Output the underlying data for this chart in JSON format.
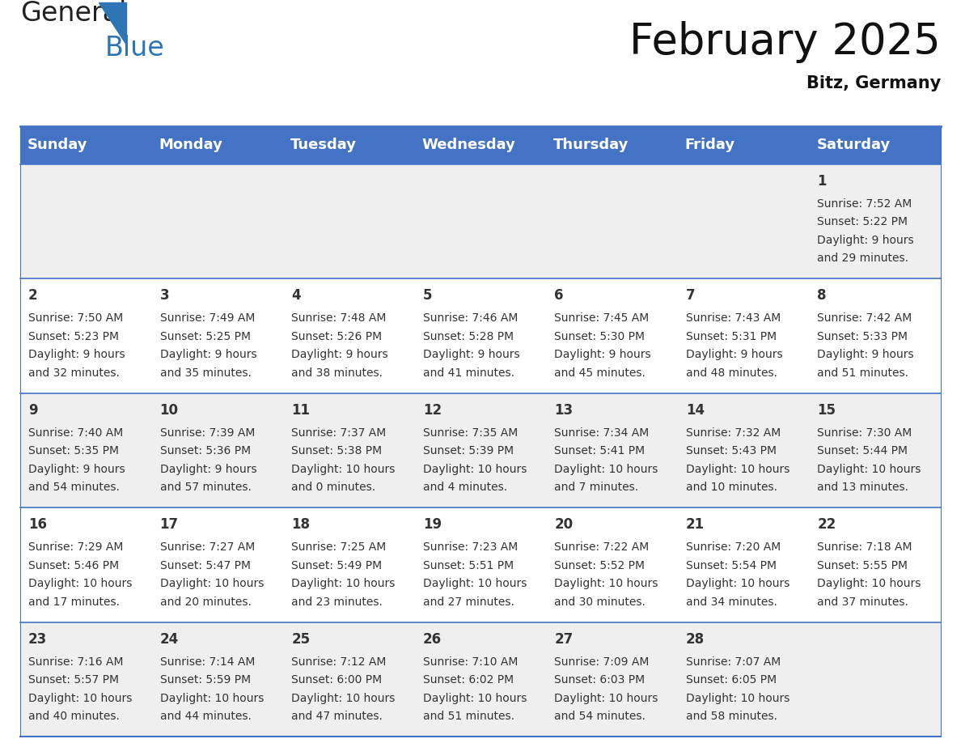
{
  "title": "February 2025",
  "subtitle": "Bitz, Germany",
  "header_color": "#4472C4",
  "header_text_color": "#FFFFFF",
  "header_days": [
    "Sunday",
    "Monday",
    "Tuesday",
    "Wednesday",
    "Thursday",
    "Friday",
    "Saturday"
  ],
  "bg_color": "#FFFFFF",
  "cell_bg_light": "#EFEFEF",
  "cell_bg_white": "#FFFFFF",
  "divider_color": "#4472C4",
  "text_color": "#333333",
  "logo_general_color": "#222222",
  "logo_blue_color": "#2E75B6",
  "title_color": "#111111",
  "calendar": [
    [
      null,
      null,
      null,
      null,
      null,
      null,
      {
        "day": 1,
        "sunrise": "7:52 AM",
        "sunset": "5:22 PM",
        "daylight": "9 hours and 29 minutes."
      }
    ],
    [
      {
        "day": 2,
        "sunrise": "7:50 AM",
        "sunset": "5:23 PM",
        "daylight": "9 hours and 32 minutes."
      },
      {
        "day": 3,
        "sunrise": "7:49 AM",
        "sunset": "5:25 PM",
        "daylight": "9 hours and 35 minutes."
      },
      {
        "day": 4,
        "sunrise": "7:48 AM",
        "sunset": "5:26 PM",
        "daylight": "9 hours and 38 minutes."
      },
      {
        "day": 5,
        "sunrise": "7:46 AM",
        "sunset": "5:28 PM",
        "daylight": "9 hours and 41 minutes."
      },
      {
        "day": 6,
        "sunrise": "7:45 AM",
        "sunset": "5:30 PM",
        "daylight": "9 hours and 45 minutes."
      },
      {
        "day": 7,
        "sunrise": "7:43 AM",
        "sunset": "5:31 PM",
        "daylight": "9 hours and 48 minutes."
      },
      {
        "day": 8,
        "sunrise": "7:42 AM",
        "sunset": "5:33 PM",
        "daylight": "9 hours and 51 minutes."
      }
    ],
    [
      {
        "day": 9,
        "sunrise": "7:40 AM",
        "sunset": "5:35 PM",
        "daylight": "9 hours and 54 minutes."
      },
      {
        "day": 10,
        "sunrise": "7:39 AM",
        "sunset": "5:36 PM",
        "daylight": "9 hours and 57 minutes."
      },
      {
        "day": 11,
        "sunrise": "7:37 AM",
        "sunset": "5:38 PM",
        "daylight": "10 hours and 0 minutes."
      },
      {
        "day": 12,
        "sunrise": "7:35 AM",
        "sunset": "5:39 PM",
        "daylight": "10 hours and 4 minutes."
      },
      {
        "day": 13,
        "sunrise": "7:34 AM",
        "sunset": "5:41 PM",
        "daylight": "10 hours and 7 minutes."
      },
      {
        "day": 14,
        "sunrise": "7:32 AM",
        "sunset": "5:43 PM",
        "daylight": "10 hours and 10 minutes."
      },
      {
        "day": 15,
        "sunrise": "7:30 AM",
        "sunset": "5:44 PM",
        "daylight": "10 hours and 13 minutes."
      }
    ],
    [
      {
        "day": 16,
        "sunrise": "7:29 AM",
        "sunset": "5:46 PM",
        "daylight": "10 hours and 17 minutes."
      },
      {
        "day": 17,
        "sunrise": "7:27 AM",
        "sunset": "5:47 PM",
        "daylight": "10 hours and 20 minutes."
      },
      {
        "day": 18,
        "sunrise": "7:25 AM",
        "sunset": "5:49 PM",
        "daylight": "10 hours and 23 minutes."
      },
      {
        "day": 19,
        "sunrise": "7:23 AM",
        "sunset": "5:51 PM",
        "daylight": "10 hours and 27 minutes."
      },
      {
        "day": 20,
        "sunrise": "7:22 AM",
        "sunset": "5:52 PM",
        "daylight": "10 hours and 30 minutes."
      },
      {
        "day": 21,
        "sunrise": "7:20 AM",
        "sunset": "5:54 PM",
        "daylight": "10 hours and 34 minutes."
      },
      {
        "day": 22,
        "sunrise": "7:18 AM",
        "sunset": "5:55 PM",
        "daylight": "10 hours and 37 minutes."
      }
    ],
    [
      {
        "day": 23,
        "sunrise": "7:16 AM",
        "sunset": "5:57 PM",
        "daylight": "10 hours and 40 minutes."
      },
      {
        "day": 24,
        "sunrise": "7:14 AM",
        "sunset": "5:59 PM",
        "daylight": "10 hours and 44 minutes."
      },
      {
        "day": 25,
        "sunrise": "7:12 AM",
        "sunset": "6:00 PM",
        "daylight": "10 hours and 47 minutes."
      },
      {
        "day": 26,
        "sunrise": "7:10 AM",
        "sunset": "6:02 PM",
        "daylight": "10 hours and 51 minutes."
      },
      {
        "day": 27,
        "sunrise": "7:09 AM",
        "sunset": "6:03 PM",
        "daylight": "10 hours and 54 minutes."
      },
      {
        "day": 28,
        "sunrise": "7:07 AM",
        "sunset": "6:05 PM",
        "daylight": "10 hours and 58 minutes."
      },
      null
    ]
  ],
  "row_colors": [
    "#EFEFEF",
    "#FFFFFF",
    "#EFEFEF",
    "#FFFFFF",
    "#EFEFEF"
  ],
  "header_fontsize": 13,
  "day_num_fontsize": 12,
  "info_fontsize": 10,
  "title_fontsize": 38,
  "subtitle_fontsize": 15
}
